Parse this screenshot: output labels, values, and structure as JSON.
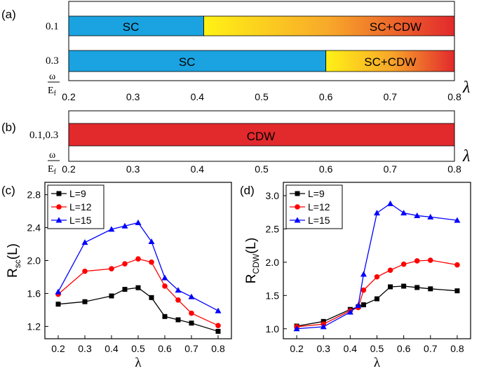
{
  "panels": {
    "a": {
      "label": "(a)",
      "x_tick_labels": [
        "0.2",
        "0.3",
        "0.4",
        "0.5",
        "0.6",
        "0.7",
        "0.8"
      ],
      "omega_label": "ω",
      "ef_label": "E",
      "ef_sub": "f",
      "lambda_label": "λ",
      "rows": [
        {
          "row_label": "0.1",
          "boundary": 0.41,
          "left_label": "SC",
          "right_label": "SC+CDW"
        },
        {
          "row_label": "0.3",
          "boundary": 0.6,
          "left_label": "SC",
          "right_label": "SC+CDW"
        }
      ]
    },
    "b": {
      "label": "(b)",
      "x_tick_labels": [
        "0.2",
        "0.3",
        "0.4",
        "0.5",
        "0.6",
        "0.7",
        "0.8"
      ],
      "omega_label": "ω",
      "ef_label": "E",
      "ef_sub": "f",
      "lambda_label": "λ",
      "row_label": "0.1,0.3",
      "bar_label": "CDW"
    }
  },
  "colors": {
    "sc": "#1aa3e0",
    "gradient_start": "#fff215",
    "gradient_mid": "#f8a82a",
    "gradient_end": "#e2292c",
    "cdw": "#e2292c",
    "l9": "#000000",
    "l12": "#ff0000",
    "l15": "#0000ff"
  },
  "chart_data": [
    {
      "panel": "(c)",
      "type": "line",
      "x": [
        0.2,
        0.3,
        0.4,
        0.45,
        0.5,
        0.55,
        0.6,
        0.65,
        0.7,
        0.8
      ],
      "xlim": [
        0.15,
        0.85
      ],
      "ylim": [
        1.05,
        2.95
      ],
      "x_ticks": [
        0.2,
        0.3,
        0.4,
        0.5,
        0.6,
        0.7,
        0.8
      ],
      "x_tick_labels": [
        "0.2",
        "0.3",
        "0.4",
        "0.5",
        "0.6",
        "0.7",
        "0.8"
      ],
      "y_ticks": [
        1.2,
        1.6,
        2.0,
        2.4,
        2.8
      ],
      "y_tick_labels": [
        "1.2",
        "1.6",
        "2.0",
        "2.4",
        "2.8"
      ],
      "xlabel": "λ",
      "ylabel_main": "R",
      "ylabel_sub": "sc",
      "ylabel_tail": "(L)",
      "legend_position": "top-left",
      "series": [
        {
          "name": "L=9",
          "marker": "square",
          "color": "#000000",
          "values": [
            1.47,
            1.5,
            1.57,
            1.65,
            1.67,
            1.55,
            1.32,
            1.28,
            1.24,
            1.14
          ]
        },
        {
          "name": "L=12",
          "marker": "circle",
          "color": "#ff0000",
          "values": [
            1.59,
            1.87,
            1.9,
            1.96,
            2.02,
            1.98,
            1.69,
            1.52,
            1.36,
            1.21
          ]
        },
        {
          "name": "L=15",
          "marker": "triangle",
          "color": "#0000ff",
          "values": [
            1.62,
            2.22,
            2.38,
            2.42,
            2.46,
            2.23,
            1.79,
            1.64,
            1.56,
            1.39
          ]
        }
      ]
    },
    {
      "panel": "(d)",
      "type": "line",
      "x": [
        0.2,
        0.3,
        0.4,
        0.43,
        0.45,
        0.5,
        0.55,
        0.6,
        0.65,
        0.7,
        0.8
      ],
      "xlim": [
        0.15,
        0.85
      ],
      "ylim": [
        0.85,
        3.2
      ],
      "x_ticks": [
        0.2,
        0.3,
        0.4,
        0.5,
        0.6,
        0.7,
        0.8
      ],
      "x_tick_labels": [
        "0.2",
        "0.3",
        "0.4",
        "0.5",
        "0.6",
        "0.7",
        "0.8"
      ],
      "y_ticks": [
        1.0,
        1.5,
        2.0,
        2.5,
        3.0
      ],
      "y_tick_labels": [
        "1.0",
        "1.5",
        "2.0",
        "2.5",
        "3.0"
      ],
      "xlabel": "λ",
      "ylabel_main": "R",
      "ylabel_sub": "CDW",
      "ylabel_tail": "(L)",
      "legend_position": "top-left",
      "series": [
        {
          "name": "L=9",
          "marker": "square",
          "color": "#000000",
          "values": [
            1.04,
            1.11,
            1.29,
            1.33,
            1.36,
            1.45,
            1.63,
            1.64,
            1.62,
            1.6,
            1.57
          ]
        },
        {
          "name": "L=12",
          "marker": "circle",
          "color": "#ff0000",
          "values": [
            1.03,
            1.07,
            1.27,
            1.32,
            1.58,
            1.78,
            1.88,
            1.97,
            2.02,
            2.03,
            1.96
          ]
        },
        {
          "name": "L=15",
          "marker": "triangle",
          "color": "#0000ff",
          "values": [
            1.0,
            1.03,
            1.25,
            1.35,
            1.82,
            2.74,
            2.88,
            2.74,
            2.7,
            2.68,
            2.63
          ]
        }
      ]
    }
  ]
}
